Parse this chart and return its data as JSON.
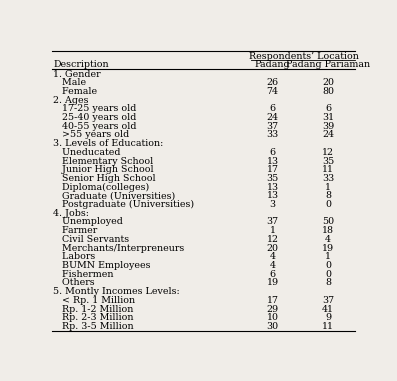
{
  "title": "Respondents’ Location",
  "col1_header": "Description",
  "col2_header": "Padang",
  "col3_header": "Padang Pariaman",
  "rows": [
    {
      "desc": "1. Gender",
      "padang": "",
      "pariaman": "",
      "is_section": true
    },
    {
      "desc": "   Male",
      "padang": "26",
      "pariaman": "20",
      "is_section": false
    },
    {
      "desc": "   Female",
      "padang": "74",
      "pariaman": "80",
      "is_section": false
    },
    {
      "desc": "2. Ages",
      "padang": "",
      "pariaman": "",
      "is_section": true
    },
    {
      "desc": "   17-25 years old",
      "padang": "6",
      "pariaman": "6",
      "is_section": false
    },
    {
      "desc": "   25-40 years old",
      "padang": "24",
      "pariaman": "31",
      "is_section": false
    },
    {
      "desc": "   40-55 years old",
      "padang": "37",
      "pariaman": "39",
      "is_section": false
    },
    {
      "desc": "   >55 years old",
      "padang": "33",
      "pariaman": "24",
      "is_section": false
    },
    {
      "desc": "3. Levels of Education:",
      "padang": "",
      "pariaman": "",
      "is_section": true
    },
    {
      "desc": "   Uneducated",
      "padang": "6",
      "pariaman": "12",
      "is_section": false
    },
    {
      "desc": "   Elementary School",
      "padang": "13",
      "pariaman": "35",
      "is_section": false
    },
    {
      "desc": "   Junior High School",
      "padang": "17",
      "pariaman": "11",
      "is_section": false
    },
    {
      "desc": "   Senior High School",
      "padang": "35",
      "pariaman": "33",
      "is_section": false
    },
    {
      "desc": "   Diploma(colleges)",
      "padang": "13",
      "pariaman": "1",
      "is_section": false
    },
    {
      "desc": "   Graduate (Universities)",
      "padang": "13",
      "pariaman": "8",
      "is_section": false
    },
    {
      "desc": "   Postgraduate (Universities)",
      "padang": "3",
      "pariaman": "0",
      "is_section": false
    },
    {
      "desc": "4. Jobs:",
      "padang": "",
      "pariaman": "",
      "is_section": true
    },
    {
      "desc": "   Unemployed",
      "padang": "37",
      "pariaman": "50",
      "is_section": false
    },
    {
      "desc": "   Farmer",
      "padang": "1",
      "pariaman": "18",
      "is_section": false
    },
    {
      "desc": "   Civil Servants",
      "padang": "12",
      "pariaman": "4",
      "is_section": false
    },
    {
      "desc": "   Merchants/Interpreneurs",
      "padang": "20",
      "pariaman": "19",
      "is_section": false
    },
    {
      "desc": "   Labors",
      "padang": "4",
      "pariaman": "1",
      "is_section": false
    },
    {
      "desc": "   BUMN Employees",
      "padang": "4",
      "pariaman": "0",
      "is_section": false
    },
    {
      "desc": "   Fishermen",
      "padang": "6",
      "pariaman": "0",
      "is_section": false
    },
    {
      "desc": "   Others",
      "padang": "19",
      "pariaman": "8",
      "is_section": false
    },
    {
      "desc": "5. Montly Incomes Levels:",
      "padang": "",
      "pariaman": "",
      "is_section": true
    },
    {
      "desc": "   < Rp. 1 Million",
      "padang": "17",
      "pariaman": "37",
      "is_section": false
    },
    {
      "desc": "   Rp. 1-2 Million",
      "padang": "29",
      "pariaman": "41",
      "is_section": false
    },
    {
      "desc": "   Rp. 2-3 Million",
      "padang": "10",
      "pariaman": "9",
      "is_section": false
    },
    {
      "desc": "   Rp. 3-5 Million",
      "padang": "30",
      "pariaman": "11",
      "is_section": false
    }
  ],
  "bg_color": "#f0ede8",
  "font_size": 6.8,
  "header_font_size": 6.8
}
